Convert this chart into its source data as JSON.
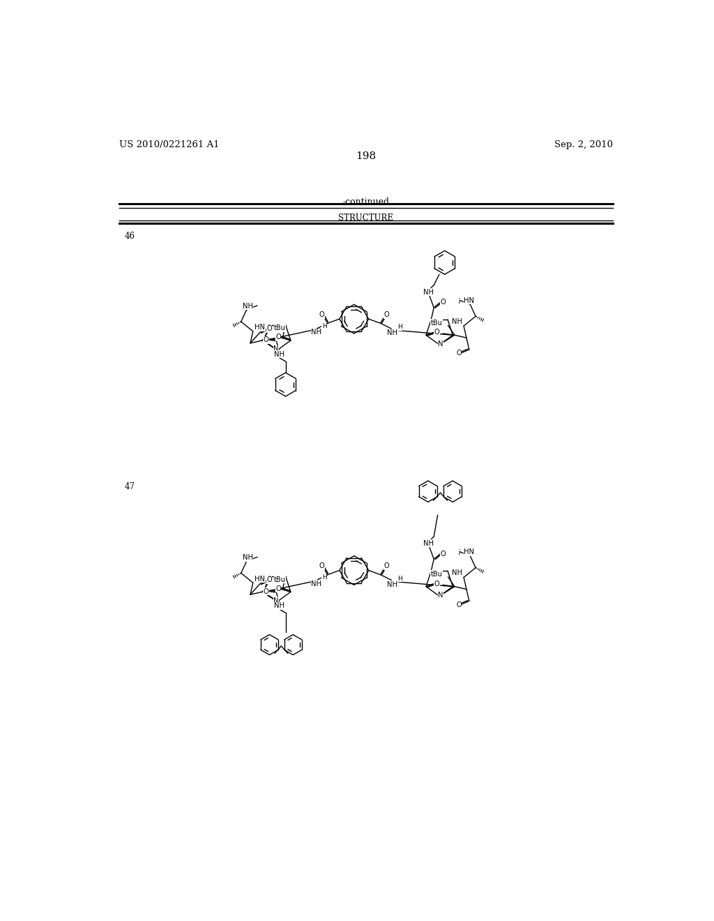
{
  "page_number": "198",
  "patent_number": "US 2010/0221261 A1",
  "patent_date": "Sep. 2, 2010",
  "continued_label": "-continued",
  "structure_header": "STRUCTURE",
  "compound_46_label": "46",
  "compound_47_label": "47",
  "bg": "#ffffff",
  "fg": "#000000"
}
